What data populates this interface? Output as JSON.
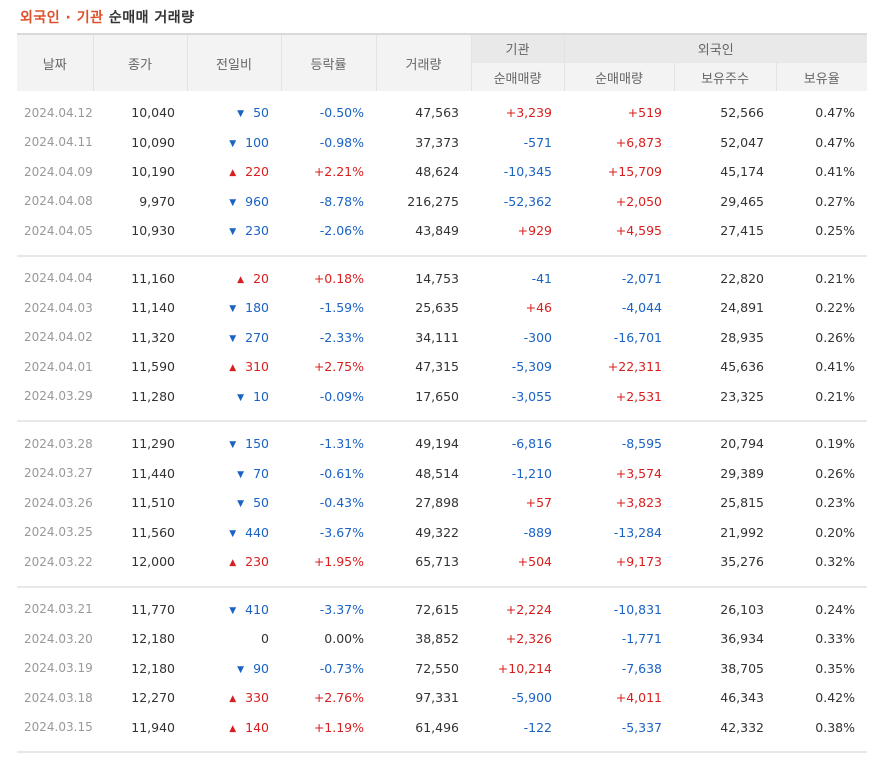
{
  "title": {
    "accent": "외국인 · 기관",
    "rest": "순매매 거래량"
  },
  "headers": {
    "date": "날짜",
    "close": "종가",
    "change": "전일비",
    "rate": "등락률",
    "volume": "거래량",
    "inst_group": "기관",
    "foreign_group": "외국인",
    "inst_net": "순매매량",
    "foreign_net": "순매매량",
    "holdings": "보유주수",
    "hold_ratio": "보유율"
  },
  "colors": {
    "up": "#d91e1e",
    "down": "#1a62c4",
    "accent": "#e0512b"
  },
  "icons": {
    "up": "up-triangle-icon",
    "down": "down-triangle-icon"
  },
  "groups": [
    [
      {
        "date": "2024.04.12",
        "close": "10,040",
        "dir": "down",
        "change": "50",
        "rate": "-0.50%",
        "volume": "47,563",
        "inst": "+3,239",
        "foreign": "+519",
        "holdings": "52,566",
        "ratio": "0.47%"
      },
      {
        "date": "2024.04.11",
        "close": "10,090",
        "dir": "down",
        "change": "100",
        "rate": "-0.98%",
        "volume": "37,373",
        "inst": "-571",
        "foreign": "+6,873",
        "holdings": "52,047",
        "ratio": "0.47%"
      },
      {
        "date": "2024.04.09",
        "close": "10,190",
        "dir": "up",
        "change": "220",
        "rate": "+2.21%",
        "volume": "48,624",
        "inst": "-10,345",
        "foreign": "+15,709",
        "holdings": "45,174",
        "ratio": "0.41%"
      },
      {
        "date": "2024.04.08",
        "close": "9,970",
        "dir": "down",
        "change": "960",
        "rate": "-8.78%",
        "volume": "216,275",
        "inst": "-52,362",
        "foreign": "+2,050",
        "holdings": "29,465",
        "ratio": "0.27%"
      },
      {
        "date": "2024.04.05",
        "close": "10,930",
        "dir": "down",
        "change": "230",
        "rate": "-2.06%",
        "volume": "43,849",
        "inst": "+929",
        "foreign": "+4,595",
        "holdings": "27,415",
        "ratio": "0.25%"
      }
    ],
    [
      {
        "date": "2024.04.04",
        "close": "11,160",
        "dir": "up",
        "change": "20",
        "rate": "+0.18%",
        "volume": "14,753",
        "inst": "-41",
        "foreign": "-2,071",
        "holdings": "22,820",
        "ratio": "0.21%"
      },
      {
        "date": "2024.04.03",
        "close": "11,140",
        "dir": "down",
        "change": "180",
        "rate": "-1.59%",
        "volume": "25,635",
        "inst": "+46",
        "foreign": "-4,044",
        "holdings": "24,891",
        "ratio": "0.22%"
      },
      {
        "date": "2024.04.02",
        "close": "11,320",
        "dir": "down",
        "change": "270",
        "rate": "-2.33%",
        "volume": "34,111",
        "inst": "-300",
        "foreign": "-16,701",
        "holdings": "28,935",
        "ratio": "0.26%"
      },
      {
        "date": "2024.04.01",
        "close": "11,590",
        "dir": "up",
        "change": "310",
        "rate": "+2.75%",
        "volume": "47,315",
        "inst": "-5,309",
        "foreign": "+22,311",
        "holdings": "45,636",
        "ratio": "0.41%"
      },
      {
        "date": "2024.03.29",
        "close": "11,280",
        "dir": "down",
        "change": "10",
        "rate": "-0.09%",
        "volume": "17,650",
        "inst": "-3,055",
        "foreign": "+2,531",
        "holdings": "23,325",
        "ratio": "0.21%"
      }
    ],
    [
      {
        "date": "2024.03.28",
        "close": "11,290",
        "dir": "down",
        "change": "150",
        "rate": "-1.31%",
        "volume": "49,194",
        "inst": "-6,816",
        "foreign": "-8,595",
        "holdings": "20,794",
        "ratio": "0.19%"
      },
      {
        "date": "2024.03.27",
        "close": "11,440",
        "dir": "down",
        "change": "70",
        "rate": "-0.61%",
        "volume": "48,514",
        "inst": "-1,210",
        "foreign": "+3,574",
        "holdings": "29,389",
        "ratio": "0.26%"
      },
      {
        "date": "2024.03.26",
        "close": "11,510",
        "dir": "down",
        "change": "50",
        "rate": "-0.43%",
        "volume": "27,898",
        "inst": "+57",
        "foreign": "+3,823",
        "holdings": "25,815",
        "ratio": "0.23%"
      },
      {
        "date": "2024.03.25",
        "close": "11,560",
        "dir": "down",
        "change": "440",
        "rate": "-3.67%",
        "volume": "49,322",
        "inst": "-889",
        "foreign": "-13,284",
        "holdings": "21,992",
        "ratio": "0.20%"
      },
      {
        "date": "2024.03.22",
        "close": "12,000",
        "dir": "up",
        "change": "230",
        "rate": "+1.95%",
        "volume": "65,713",
        "inst": "+504",
        "foreign": "+9,173",
        "holdings": "35,276",
        "ratio": "0.32%"
      }
    ],
    [
      {
        "date": "2024.03.21",
        "close": "11,770",
        "dir": "down",
        "change": "410",
        "rate": "-3.37%",
        "volume": "72,615",
        "inst": "+2,224",
        "foreign": "-10,831",
        "holdings": "26,103",
        "ratio": "0.24%"
      },
      {
        "date": "2024.03.20",
        "close": "12,180",
        "dir": "flat",
        "change": "0",
        "rate": "0.00%",
        "volume": "38,852",
        "inst": "+2,326",
        "foreign": "-1,771",
        "holdings": "36,934",
        "ratio": "0.33%"
      },
      {
        "date": "2024.03.19",
        "close": "12,180",
        "dir": "down",
        "change": "90",
        "rate": "-0.73%",
        "volume": "72,550",
        "inst": "+10,214",
        "foreign": "-7,638",
        "holdings": "38,705",
        "ratio": "0.35%"
      },
      {
        "date": "2024.03.18",
        "close": "12,270",
        "dir": "up",
        "change": "330",
        "rate": "+2.76%",
        "volume": "97,331",
        "inst": "-5,900",
        "foreign": "+4,011",
        "holdings": "46,343",
        "ratio": "0.42%"
      },
      {
        "date": "2024.03.15",
        "close": "11,940",
        "dir": "up",
        "change": "140",
        "rate": "+1.19%",
        "volume": "61,496",
        "inst": "-122",
        "foreign": "-5,337",
        "holdings": "42,332",
        "ratio": "0.38%"
      }
    ]
  ]
}
